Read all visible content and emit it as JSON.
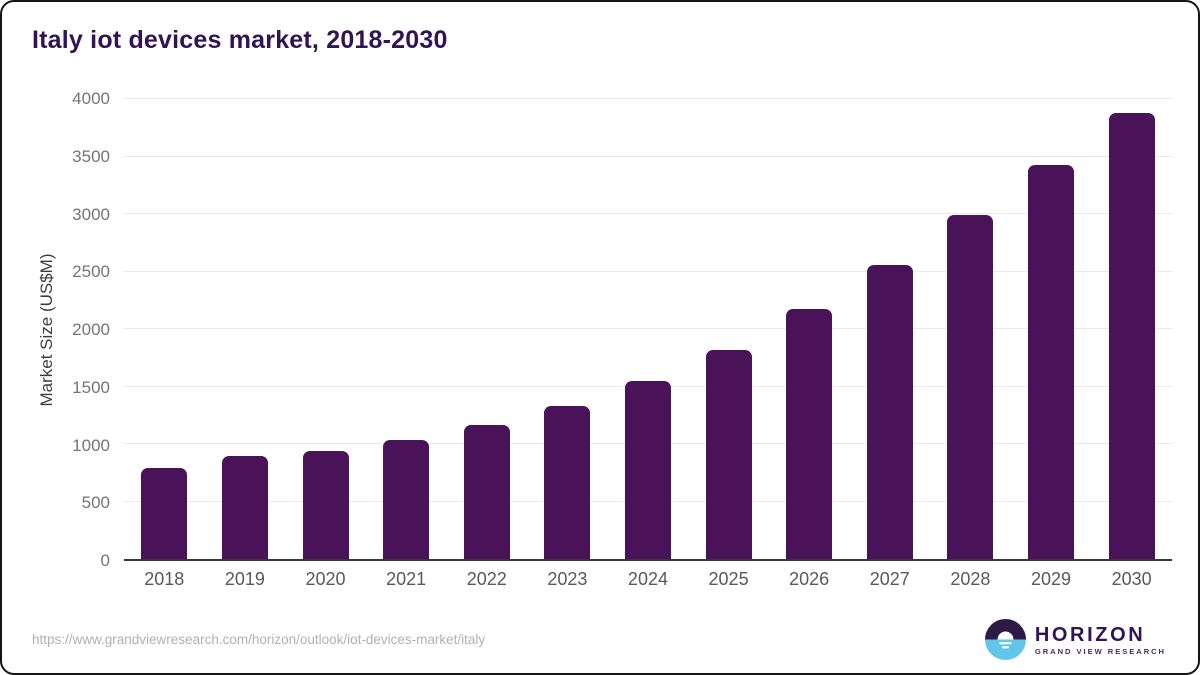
{
  "title": "Italy iot devices market, 2018-2030",
  "chart_data": {
    "type": "bar",
    "title": "Italy iot devices market, 2018-2030",
    "categories": [
      "2018",
      "2019",
      "2020",
      "2021",
      "2022",
      "2023",
      "2024",
      "2025",
      "2026",
      "2027",
      "2028",
      "2029",
      "2030"
    ],
    "values": [
      795,
      900,
      935,
      1035,
      1165,
      1330,
      1545,
      1820,
      2175,
      2560,
      2990,
      3430,
      3880
    ],
    "xlabel": "",
    "ylabel": "Market Size (US$M)",
    "ylim": [
      0,
      4000
    ],
    "yticks": [
      0,
      500,
      1000,
      1500,
      2000,
      2500,
      3000,
      3500,
      4000
    ],
    "grid": "horizontal",
    "legend": "none",
    "bar_color": "#4a1259"
  },
  "colors": {
    "accent_purple": "#4a1259",
    "title_purple": "#321353",
    "logo_blue": "#62c5ea",
    "logo_dark_purple": "#2e1a47",
    "gridline": "#e9e9e9",
    "axis_line": "#383838"
  },
  "footer": {
    "source_url": "https://www.grandviewresearch.com/horizon/outlook/iot-devices-market/italy",
    "logo": {
      "title": "HORIZON",
      "subtitle": "GRAND VIEW RESEARCH"
    }
  }
}
